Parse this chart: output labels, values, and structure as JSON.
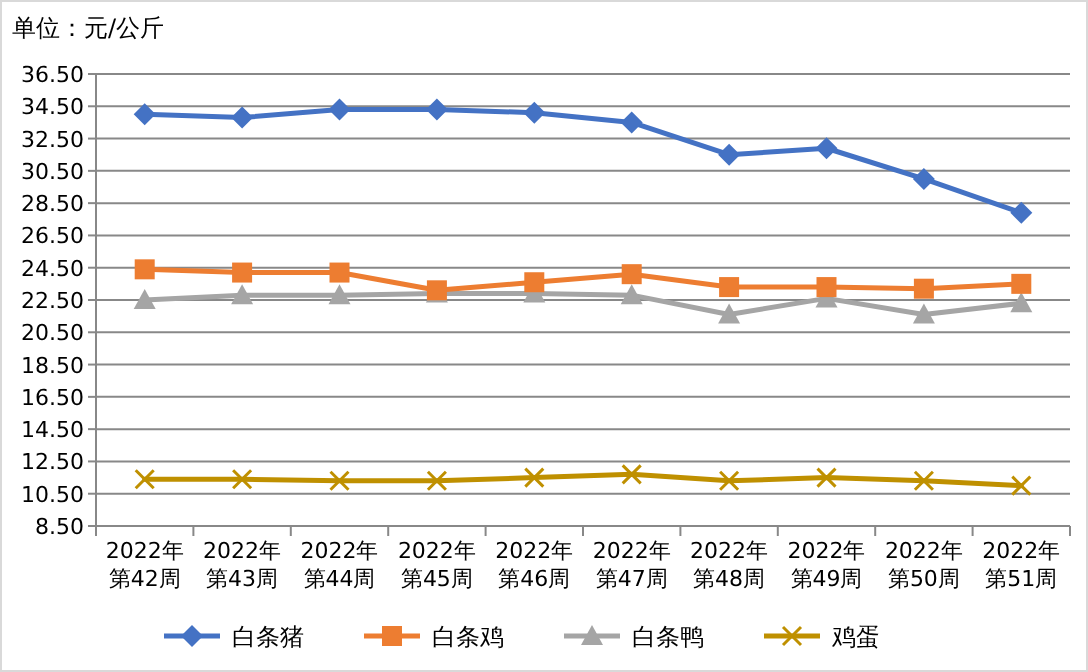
{
  "chart_data": {
    "type": "line",
    "ylabel": "单位：元/公斤",
    "categories": [
      "2022年第42周",
      "2022年第43周",
      "2022年第44周",
      "2022年第45周",
      "2022年第46周",
      "2022年第47周",
      "2022年第48周",
      "2022年第49周",
      "2022年第50周",
      "2022年第51周"
    ],
    "series": [
      {
        "name": "白条猪",
        "color": "#4472c4",
        "marker": "diamond",
        "values": [
          34.0,
          33.8,
          34.3,
          34.3,
          34.1,
          33.5,
          31.5,
          31.9,
          30.0,
          27.9
        ]
      },
      {
        "name": "白条鸡",
        "color": "#ed7d31",
        "marker": "square",
        "values": [
          24.4,
          24.2,
          24.2,
          23.1,
          23.6,
          24.1,
          23.3,
          23.3,
          23.2,
          23.5
        ]
      },
      {
        "name": "白条鸭",
        "color": "#a5a5a5",
        "marker": "triangle",
        "values": [
          22.5,
          22.8,
          22.8,
          22.9,
          22.9,
          22.8,
          21.6,
          22.6,
          21.6,
          22.3
        ]
      },
      {
        "name": "鸡蛋",
        "color": "#bf9000",
        "marker": "cross",
        "values": [
          11.4,
          11.4,
          11.3,
          11.3,
          11.5,
          11.7,
          11.3,
          11.5,
          11.3,
          11.0
        ]
      }
    ],
    "ylim": [
      8.5,
      36.5
    ],
    "yticks": [
      {
        "value": 8.5,
        "label": "8.50"
      },
      {
        "value": 10.5,
        "label": "10.50"
      },
      {
        "value": 12.5,
        "label": "12.50"
      },
      {
        "value": 14.5,
        "label": "14.50"
      },
      {
        "value": 16.5,
        "label": "16.50"
      },
      {
        "value": 18.5,
        "label": "18.50"
      },
      {
        "value": 20.5,
        "label": "20.50"
      },
      {
        "value": 22.5,
        "label": "22.50"
      },
      {
        "value": 24.5,
        "label": "24.50"
      },
      {
        "value": 26.5,
        "label": "26.50"
      },
      {
        "value": 28.5,
        "label": "28.50"
      },
      {
        "value": 30.5,
        "label": "30.50"
      },
      {
        "value": 32.5,
        "label": "32.50"
      },
      {
        "value": 34.5,
        "label": "34.50"
      },
      {
        "value": 36.5,
        "label": "36.50"
      }
    ],
    "grid": "y",
    "legend": "bottom",
    "line_style": "solid"
  }
}
